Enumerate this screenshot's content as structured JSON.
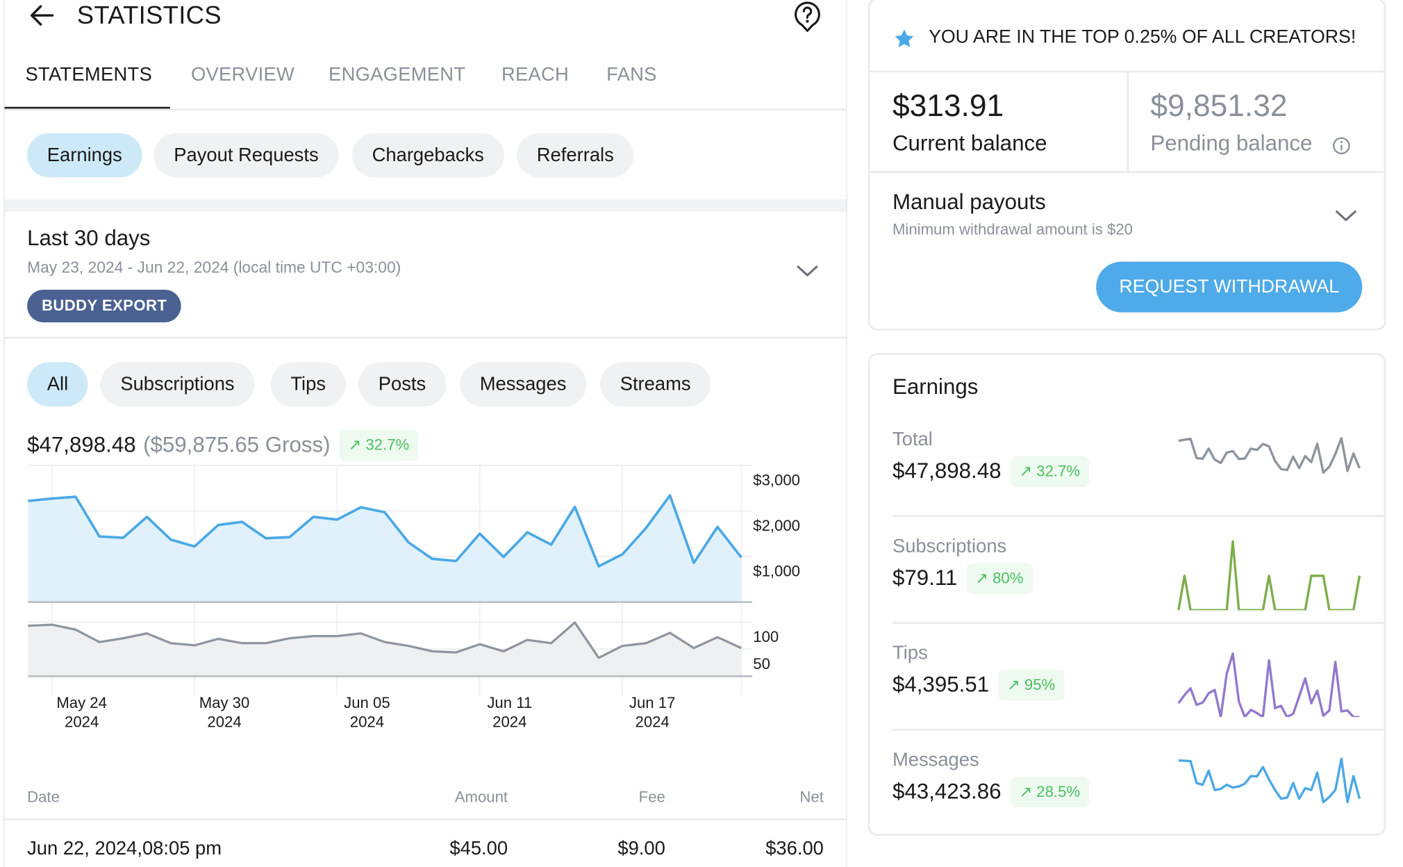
{
  "header": {
    "title": "STATISTICS",
    "back_icon": "arrow-left-icon",
    "help_icon": "help-bubble-icon"
  },
  "tabs": [
    {
      "label": "STATEMENTS",
      "active": true
    },
    {
      "label": "OVERVIEW"
    },
    {
      "label": "ENGAGEMENT"
    },
    {
      "label": "REACH"
    },
    {
      "label": "FANS"
    }
  ],
  "statement_types": [
    {
      "label": "Earnings",
      "active": true
    },
    {
      "label": "Payout Requests"
    },
    {
      "label": "Chargebacks"
    },
    {
      "label": "Referrals"
    }
  ],
  "period": {
    "title": "Last 30 days",
    "range": "May 23, 2024 - Jun 22, 2024 (local time UTC +03:00)",
    "export_label": "BUDDY EXPORT"
  },
  "filters": [
    {
      "label": "All",
      "active": true
    },
    {
      "label": "Subscriptions"
    },
    {
      "label": "Tips"
    },
    {
      "label": "Posts"
    },
    {
      "label": "Messages"
    },
    {
      "label": "Streams"
    }
  ],
  "summary": {
    "net": "$47,898.48",
    "gross": "($59,875.65 Gross)",
    "change": "32.7%"
  },
  "chart_data": [
    {
      "type": "area",
      "x": [
        "May 23",
        "May 24",
        "May 25",
        "May 26",
        "May 27",
        "May 28",
        "May 29",
        "May 30",
        "May 31",
        "Jun 01",
        "Jun 02",
        "Jun 03",
        "Jun 04",
        "Jun 05",
        "Jun 06",
        "Jun 07",
        "Jun 08",
        "Jun 09",
        "Jun 10",
        "Jun 11",
        "Jun 12",
        "Jun 13",
        "Jun 14",
        "Jun 15",
        "Jun 16",
        "Jun 17",
        "Jun 18",
        "Jun 19",
        "Jun 20",
        "Jun 21",
        "Jun 22"
      ],
      "values": [
        2220,
        2270,
        2310,
        1440,
        1410,
        1870,
        1370,
        1220,
        1690,
        1760,
        1400,
        1425,
        1870,
        1810,
        2080,
        1970,
        1310,
        950,
        900,
        1500,
        990,
        1530,
        1260,
        2090,
        785,
        1050,
        1630,
        2340,
        860,
        1650,
        980
      ],
      "ylim": [
        0,
        3000
      ],
      "yticks": [
        "$3,000",
        "$2,000",
        "$1,000"
      ],
      "ytick_values": [
        3000,
        2000,
        1000
      ],
      "axis": "right",
      "grid": true,
      "color": "#4aa8e6",
      "fill": "#e1f1fb"
    },
    {
      "type": "area",
      "values": [
        93,
        95,
        86,
        63,
        70,
        79,
        61,
        57,
        69,
        61,
        61,
        70,
        74,
        74,
        79,
        63,
        56,
        46,
        44,
        59,
        46,
        67,
        61,
        99,
        34,
        56,
        61,
        80,
        52,
        72,
        52
      ],
      "ylim": [
        0,
        100
      ],
      "yticks": [
        "100",
        "50"
      ],
      "ytick_values": [
        100,
        50
      ],
      "axis": "right",
      "grid": true,
      "color": "#8f959e",
      "fill": "#eff0f2",
      "xticks": [
        {
          "index": 1,
          "date": "May 24",
          "year": "2024"
        },
        {
          "index": 7,
          "date": "May 30",
          "year": "2024"
        },
        {
          "index": 13,
          "date": "Jun 05",
          "year": "2024"
        },
        {
          "index": 19,
          "date": "Jun 11",
          "year": "2024"
        },
        {
          "index": 25,
          "date": "Jun 17",
          "year": "2024"
        }
      ]
    }
  ],
  "table": {
    "headers": {
      "date": "Date",
      "amount": "Amount",
      "fee": "Fee",
      "net": "Net"
    },
    "rows": [
      {
        "date": "Jun 22, 2024,08:05 pm",
        "amount": "$45.00",
        "fee": "$9.00",
        "net": "$36.00"
      }
    ]
  },
  "banner": {
    "icon": "star-icon",
    "text": "YOU ARE IN THE TOP 0.25% OF ALL CREATORS!",
    "icon_color": "#4aa8e6"
  },
  "balance": {
    "current": "$313.91",
    "current_label": "Current balance",
    "pending": "$9,851.32",
    "pending_label": "Pending balance"
  },
  "payouts": {
    "title": "Manual payouts",
    "subtitle": "Minimum withdrawal amount is $20",
    "button": "REQUEST WITHDRAWAL",
    "button_color": "#4eaae8"
  },
  "earnings": {
    "title": "Earnings",
    "rows": [
      {
        "label": "Total",
        "value": "$47,898.48",
        "change": "32.7%",
        "color": "#8f959e",
        "spark": [
          2220,
          2270,
          2310,
          1440,
          1410,
          1870,
          1370,
          1220,
          1690,
          1760,
          1400,
          1425,
          1870,
          1810,
          2080,
          1970,
          1310,
          950,
          900,
          1500,
          990,
          1530,
          1260,
          2090,
          785,
          1050,
          1630,
          2340,
          860,
          1650,
          980
        ]
      },
      {
        "label": "Subscriptions",
        "value": "$79.11",
        "change": "80%",
        "color": "#7cae4a",
        "spark": [
          0,
          1,
          0,
          0,
          0,
          0,
          0,
          0,
          0,
          2,
          0,
          0,
          0,
          0,
          0,
          1,
          0,
          0,
          0,
          0,
          0,
          0,
          1,
          1,
          1,
          0,
          0,
          0,
          0,
          0,
          1
        ]
      },
      {
        "label": "Tips",
        "value": "$4,395.51",
        "change": "95%",
        "color": "#9278cf",
        "spark": [
          45,
          70,
          90,
          40,
          47,
          75,
          85,
          3,
          135,
          195,
          50,
          3,
          25,
          15,
          3,
          175,
          30,
          37,
          3,
          13,
          65,
          120,
          45,
          83,
          7,
          23,
          170,
          20,
          23,
          3,
          3
        ]
      },
      {
        "label": "Messages",
        "value": "$43,423.86",
        "change": "28.5%",
        "color": "#4aa8e6",
        "spark": [
          2150,
          2140,
          2130,
          1500,
          1450,
          1850,
          1300,
          1330,
          1450,
          1370,
          1400,
          1480,
          1700,
          1690,
          1960,
          1600,
          1300,
          1050,
          1080,
          1500,
          1050,
          1350,
          1300,
          1800,
          950,
          1100,
          1300,
          2200,
          950,
          1700,
          1050
        ]
      }
    ]
  }
}
